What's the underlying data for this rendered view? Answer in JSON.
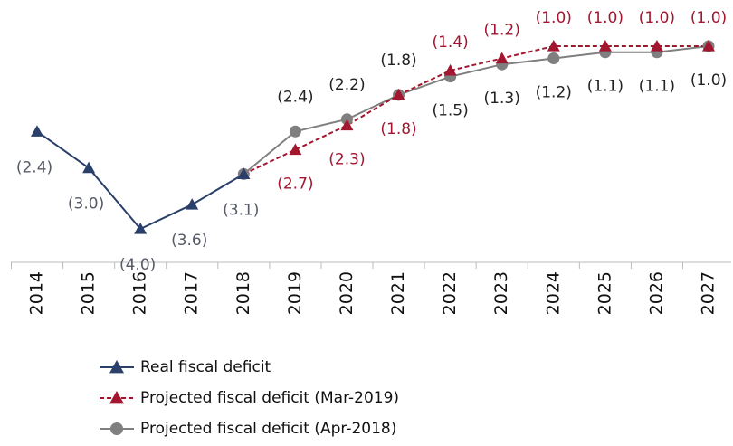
{
  "chart_data": {
    "type": "line",
    "categories": [
      "2014",
      "2015",
      "2016",
      "2017",
      "2018",
      "2019",
      "2020",
      "2021",
      "2022",
      "2023",
      "2024",
      "2025",
      "2026",
      "2027"
    ],
    "series": [
      {
        "name": "Real fiscal deficit",
        "color": "#2b3f6b",
        "marker": "triangle",
        "dashed": false,
        "label_color": "#555a66",
        "values": [
          -2.4,
          -3.0,
          -4.0,
          -3.6,
          -3.1,
          null,
          null,
          null,
          null,
          null,
          null,
          null,
          null,
          null
        ],
        "value_labels": [
          "(2.4)",
          "(3.0)",
          "(4.0)",
          "(3.6)",
          "(3.1)",
          null,
          null,
          null,
          null,
          null,
          null,
          null,
          null,
          null
        ]
      },
      {
        "name": "Projected fiscal deficit (Mar-2019)",
        "color": "#a3162f",
        "marker": "triangle",
        "dashed": true,
        "label_color": "#a3162f",
        "values": [
          null,
          null,
          null,
          null,
          -3.1,
          -2.7,
          -2.3,
          -1.8,
          -1.4,
          -1.2,
          -1.0,
          -1.0,
          -1.0,
          -1.0
        ],
        "value_labels": [
          null,
          null,
          null,
          null,
          null,
          "(2.7)",
          "(2.3)",
          "(1.8)",
          "(1.4)",
          "(1.2)",
          "(1.0)",
          "(1.0)",
          "(1.0)",
          "(1.0)"
        ]
      },
      {
        "name": "Projected fiscal deficit (Apr-2018)",
        "color": "#7f7f7f",
        "marker": "circle",
        "dashed": false,
        "label_color": "#222222",
        "values": [
          null,
          null,
          null,
          null,
          -3.1,
          -2.4,
          -2.2,
          -1.8,
          -1.5,
          -1.3,
          -1.2,
          -1.1,
          -1.1,
          -1.0
        ],
        "value_labels": [
          null,
          null,
          null,
          null,
          null,
          "(2.4)",
          "(2.2)",
          "(1.8)",
          "(1.5)",
          "(1.3)",
          "(1.2)",
          "(1.1)",
          "(1.1)",
          "(1.0)"
        ]
      }
    ]
  }
}
